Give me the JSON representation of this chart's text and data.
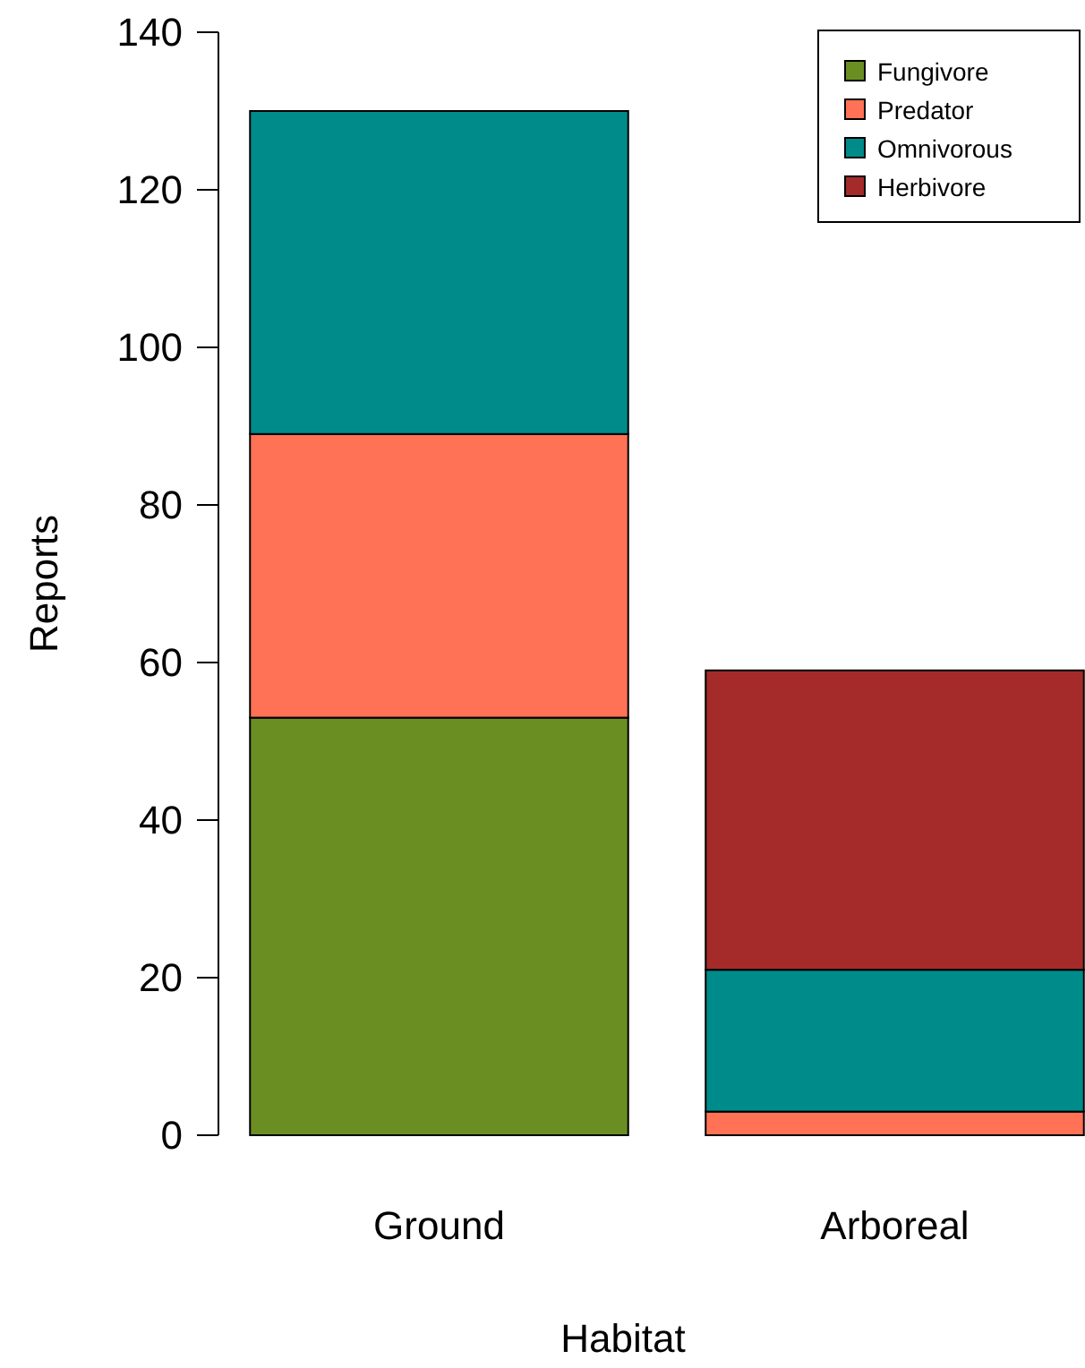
{
  "chart_data": {
    "type": "bar",
    "stacked": true,
    "xlabel": "Habitat",
    "ylabel": "Reports",
    "categories": [
      "Ground",
      "Arboreal"
    ],
    "series": [
      {
        "name": "Fungivore",
        "color": "#6b8e23",
        "values": [
          53,
          0
        ]
      },
      {
        "name": "Predator",
        "color": "#ff7256",
        "values": [
          36,
          3
        ]
      },
      {
        "name": "Omnivorous",
        "color": "#008b8b",
        "values": [
          41,
          18
        ]
      },
      {
        "name": "Herbivore",
        "color": "#a52a2a",
        "values": [
          0,
          38
        ]
      }
    ],
    "ylim": [
      0,
      140
    ],
    "yticks": [
      0,
      20,
      40,
      60,
      80,
      100,
      120,
      140
    ],
    "legend": "top right",
    "grid": false
  }
}
